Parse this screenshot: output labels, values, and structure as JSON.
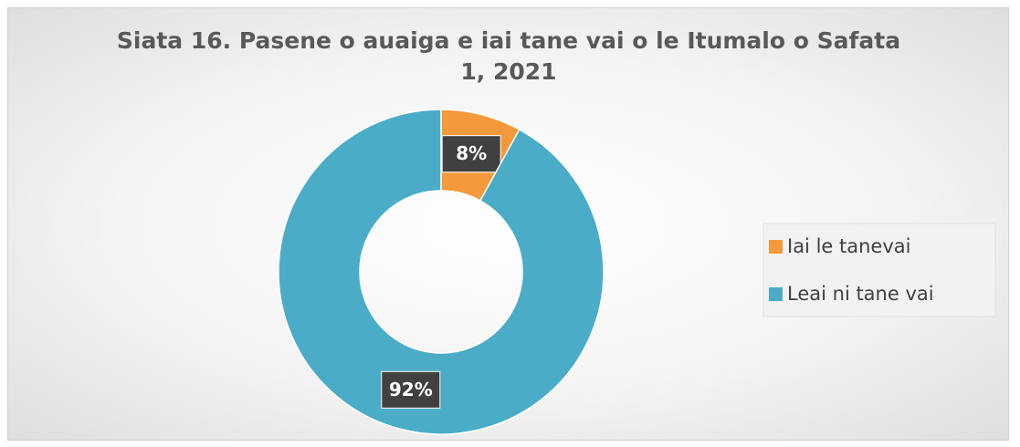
{
  "chart_data": {
    "type": "donut",
    "title": "Siata 16. Pasene o auaiga e iai tane vai o le Itumalo o Safata 1, 2021",
    "categories": [
      "Iai le tanevai",
      "Leai ni tane vai"
    ],
    "values": [
      8,
      92
    ],
    "value_labels": [
      "8%",
      "92%"
    ],
    "colors": [
      "#f59a3c",
      "#4aacc6"
    ],
    "legend": "right"
  }
}
